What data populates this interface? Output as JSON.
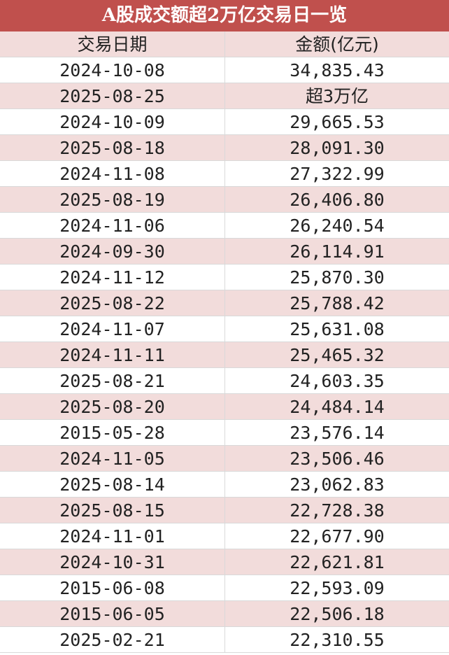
{
  "title": "A股成交额超2万亿交易日一览",
  "table": {
    "header": [
      "交易日期",
      "金额(亿元)"
    ],
    "rows": [
      [
        "2024-10-08",
        "34,835.43"
      ],
      [
        "2025-08-25",
        "超3万亿"
      ],
      [
        "2024-10-09",
        "29,665.53"
      ],
      [
        "2025-08-18",
        "28,091.30"
      ],
      [
        "2024-11-08",
        "27,322.99"
      ],
      [
        "2025-08-19",
        "26,406.80"
      ],
      [
        "2024-11-06",
        "26,240.54"
      ],
      [
        "2024-09-30",
        "26,114.91"
      ],
      [
        "2024-11-12",
        "25,870.30"
      ],
      [
        "2025-08-22",
        "25,788.42"
      ],
      [
        "2024-11-07",
        "25,631.08"
      ],
      [
        "2024-11-11",
        "25,465.32"
      ],
      [
        "2025-08-21",
        "24,603.35"
      ],
      [
        "2025-08-20",
        "24,484.14"
      ],
      [
        "2015-05-28",
        "23,576.14"
      ],
      [
        "2024-11-05",
        "23,506.46"
      ],
      [
        "2025-08-14",
        "23,062.83"
      ],
      [
        "2025-08-15",
        "22,728.38"
      ],
      [
        "2024-11-01",
        "22,677.90"
      ],
      [
        "2024-10-31",
        "22,621.81"
      ],
      [
        "2015-06-08",
        "22,593.09"
      ],
      [
        "2015-06-05",
        "22,506.18"
      ],
      [
        "2025-02-21",
        "22,310.55"
      ]
    ]
  }
}
